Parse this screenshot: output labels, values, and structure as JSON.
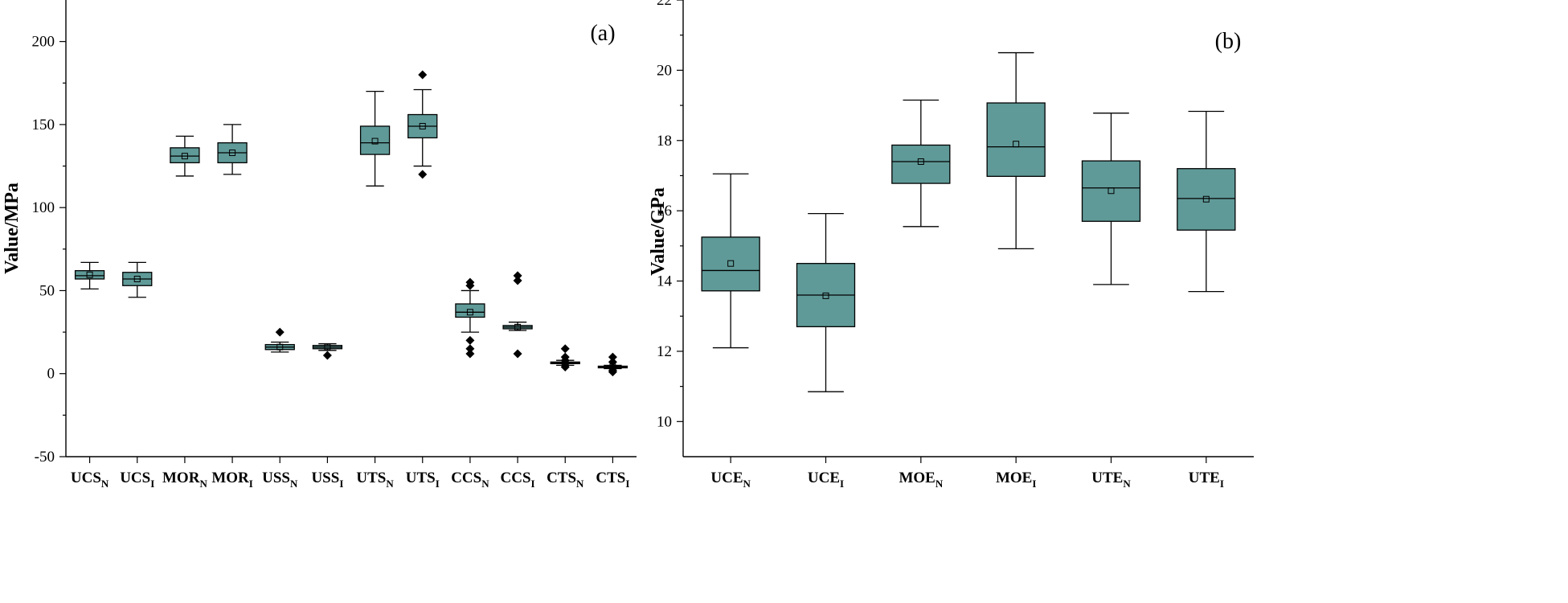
{
  "chart_data": [
    {
      "type": "box",
      "panel_label": "(a)",
      "ylabel": "Value/MPa",
      "ylim": [
        -50,
        225
      ],
      "yticks": [
        -50,
        0,
        50,
        100,
        150,
        200
      ],
      "box_color": "#5F9A98",
      "boxes": [
        {
          "name": "UCS",
          "sub": "N",
          "min": 51,
          "q1": 57,
          "median": 59,
          "q3": 62,
          "max": 67,
          "mean": 59.5,
          "outliers": []
        },
        {
          "name": "UCS",
          "sub": "I",
          "min": 46,
          "q1": 53,
          "median": 57,
          "q3": 61,
          "max": 67,
          "mean": 57,
          "outliers": []
        },
        {
          "name": "MOR",
          "sub": "N",
          "min": 119,
          "q1": 127,
          "median": 131,
          "q3": 136,
          "max": 143,
          "mean": 131,
          "outliers": []
        },
        {
          "name": "MOR",
          "sub": "I",
          "min": 120,
          "q1": 127,
          "median": 133,
          "q3": 139,
          "max": 150,
          "mean": 133,
          "outliers": []
        },
        {
          "name": "USS",
          "sub": "N",
          "min": 13,
          "q1": 14.5,
          "median": 16,
          "q3": 17.5,
          "max": 19,
          "mean": 16,
          "outliers": [
            25
          ]
        },
        {
          "name": "USS",
          "sub": "I",
          "min": 14,
          "q1": 15,
          "median": 16,
          "q3": 17,
          "max": 18,
          "mean": 16,
          "outliers": [
            11
          ]
        },
        {
          "name": "UTS",
          "sub": "N",
          "min": 113,
          "q1": 132,
          "median": 139,
          "q3": 149,
          "max": 170,
          "mean": 140,
          "outliers": []
        },
        {
          "name": "UTS",
          "sub": "I",
          "min": 125,
          "q1": 142,
          "median": 149,
          "q3": 156,
          "max": 171,
          "mean": 149,
          "outliers": [
            180,
            120
          ]
        },
        {
          "name": "CCS",
          "sub": "N",
          "min": 25,
          "q1": 34,
          "median": 37,
          "q3": 42,
          "max": 50,
          "mean": 37,
          "outliers": [
            55,
            53,
            20,
            15,
            12
          ]
        },
        {
          "name": "CCS",
          "sub": "I",
          "min": 26,
          "q1": 27,
          "median": 28,
          "q3": 29,
          "max": 31,
          "mean": 28,
          "outliers": [
            59,
            56,
            12
          ]
        },
        {
          "name": "CTS",
          "sub": "N",
          "min": 5,
          "q1": 6,
          "median": 6.5,
          "q3": 7,
          "max": 8,
          "mean": 6.5,
          "outliers": [
            15,
            10,
            8,
            5,
            4
          ]
        },
        {
          "name": "CTS",
          "sub": "I",
          "min": 3,
          "q1": 3.5,
          "median": 4,
          "q3": 4.5,
          "max": 5,
          "mean": 4,
          "outliers": [
            10,
            7,
            2,
            1
          ]
        }
      ]
    },
    {
      "type": "box",
      "panel_label": "(b)",
      "ylabel": "Value/GPa",
      "ylim": [
        9,
        22
      ],
      "yticks": [
        10,
        12,
        14,
        16,
        18,
        20,
        22
      ],
      "box_color": "#5F9A98",
      "boxes": [
        {
          "name": "UCE",
          "sub": "N",
          "min": 12.1,
          "q1": 13.72,
          "median": 14.3,
          "q3": 15.25,
          "max": 17.05,
          "mean": 14.5,
          "outliers": []
        },
        {
          "name": "UCE",
          "sub": "I",
          "min": 10.85,
          "q1": 12.7,
          "median": 13.6,
          "q3": 14.5,
          "max": 15.92,
          "mean": 13.58,
          "outliers": []
        },
        {
          "name": "MOE",
          "sub": "N",
          "min": 15.55,
          "q1": 16.78,
          "median": 17.4,
          "q3": 17.87,
          "max": 19.15,
          "mean": 17.4,
          "outliers": []
        },
        {
          "name": "MOE",
          "sub": "I",
          "min": 14.92,
          "q1": 16.98,
          "median": 17.82,
          "q3": 19.07,
          "max": 20.5,
          "mean": 17.9,
          "outliers": []
        },
        {
          "name": "UTE",
          "sub": "N",
          "min": 13.9,
          "q1": 15.7,
          "median": 16.65,
          "q3": 17.42,
          "max": 18.78,
          "mean": 16.57,
          "outliers": []
        },
        {
          "name": "UTE",
          "sub": "I",
          "min": 13.7,
          "q1": 15.45,
          "median": 16.35,
          "q3": 17.2,
          "max": 18.83,
          "mean": 16.33,
          "outliers": []
        }
      ]
    }
  ]
}
